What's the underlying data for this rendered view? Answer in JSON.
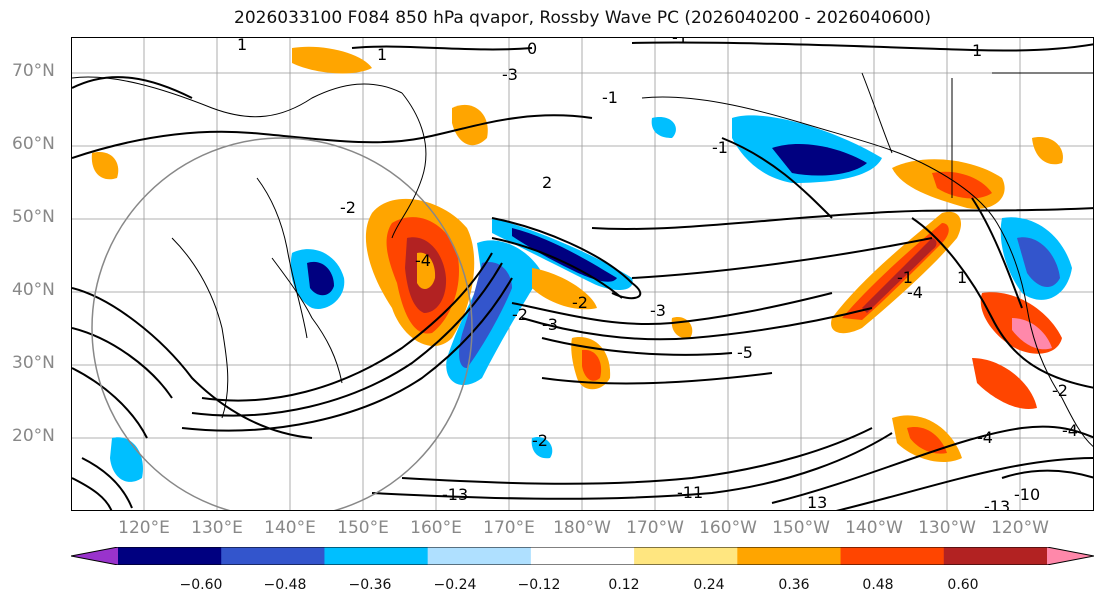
{
  "title": "2026033100 F084 850 hPa qvapor, Rossby Wave PC (2026040200 - 2026040600)",
  "lat_labels": [
    "70°N",
    "60°N",
    "50°N",
    "40°N",
    "30°N",
    "20°N"
  ],
  "lon_labels": [
    "120°E",
    "130°E",
    "140°E",
    "150°E",
    "160°E",
    "170°E",
    "180°W",
    "170°W",
    "160°W",
    "150°W",
    "140°W",
    "130°W",
    "120°W"
  ],
  "colorbar": {
    "colors": [
      "#9933cc",
      "#000080",
      "#3355cc",
      "#00bfff",
      "#afe0ff",
      "#ffffff",
      "#ffe680",
      "#ffa500",
      "#ff4500",
      "#b22222",
      "#ff88aa"
    ],
    "tick_labels": [
      "−0.60",
      "−0.48",
      "−0.36",
      "−0.24",
      "−0.12",
      "0.12",
      "0.24",
      "0.36",
      "0.48",
      "0.60"
    ]
  },
  "contour_labels": [
    "1",
    "0",
    "-1",
    "-3",
    "1",
    "-1",
    "2",
    "-2",
    "1",
    "-4",
    "-2",
    "-3",
    "-2",
    "-3",
    "-5",
    "1",
    "-1",
    "-4",
    "-1",
    "-2",
    "-2",
    "-4",
    "-11",
    "-13",
    "13",
    "-13",
    "-10",
    "-4"
  ]
}
